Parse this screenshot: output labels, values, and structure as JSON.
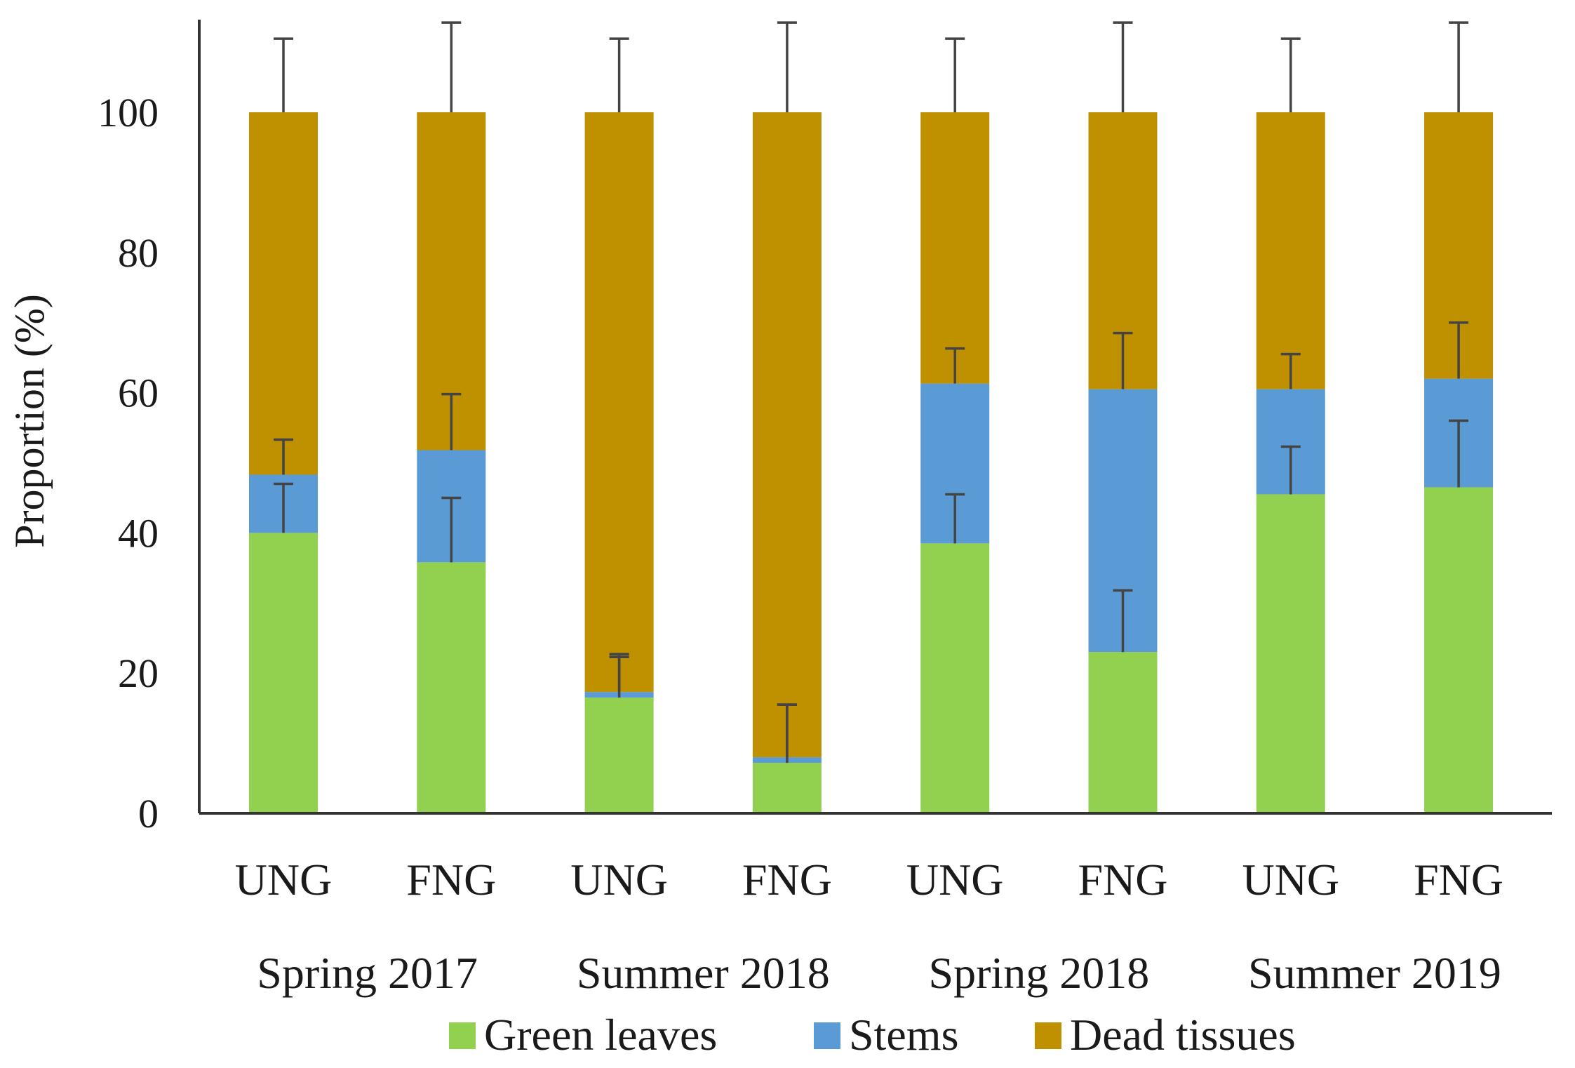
{
  "chart_data": {
    "type": "bar",
    "stacked": true,
    "title": "",
    "xlabel": "",
    "ylabel": "Proportion (%)",
    "ylim": [
      0,
      110
    ],
    "yticks": [
      0,
      20,
      40,
      60,
      80,
      100
    ],
    "categories": [
      "UNG",
      "FNG",
      "UNG",
      "FNG",
      "UNG",
      "FNG",
      "UNG",
      "FNG"
    ],
    "groups": [
      {
        "label": "Spring 2017",
        "span": [
          0,
          1
        ]
      },
      {
        "label": "Summer 2018",
        "span": [
          2,
          3
        ]
      },
      {
        "label": "Spring 2018",
        "span": [
          4,
          5
        ]
      },
      {
        "label": "Summer 2019",
        "span": [
          6,
          7
        ]
      }
    ],
    "series": [
      {
        "name": "Green leaves",
        "color": "#92D050",
        "values": [
          40,
          35.8,
          16.5,
          7.2,
          38.5,
          23,
          45.5,
          46.5
        ],
        "error": [
          7,
          9.2,
          6.2,
          8.3,
          7,
          8.8,
          6.8,
          9.5
        ]
      },
      {
        "name": "Stems",
        "color": "#5B9BD5",
        "values": [
          8.3,
          16,
          0.8,
          0.8,
          22.8,
          37.5,
          15,
          15.5
        ],
        "error": [
          5,
          8,
          5,
          7.5,
          5,
          8,
          5,
          8
        ]
      },
      {
        "name": "Dead tissues",
        "color": "#BF9000",
        "values": [
          51.7,
          48.2,
          82.7,
          92,
          38.7,
          39.5,
          39.5,
          38
        ],
        "error": [
          10.5,
          12.8,
          10.5,
          12.8,
          10.5,
          12.8,
          10.5,
          12.8
        ]
      }
    ],
    "legend_position": "bottom",
    "grid": false
  }
}
